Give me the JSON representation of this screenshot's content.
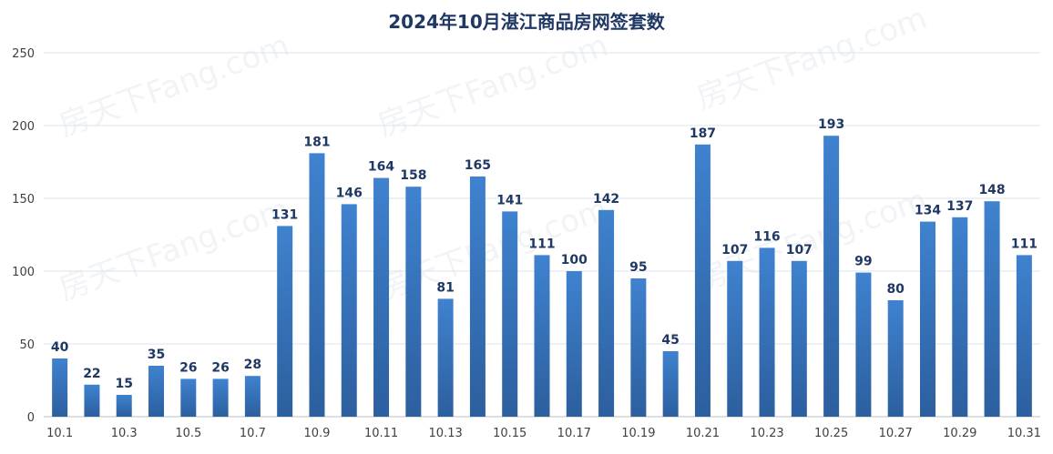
{
  "chart_data": {
    "type": "bar",
    "title": "2024年10月湛江商品房网签套数",
    "xlabel": "",
    "ylabel": "",
    "ylim": [
      0,
      250
    ],
    "yticks": [
      0,
      50,
      100,
      150,
      200,
      250
    ],
    "grid": true,
    "legend": "none",
    "bar_color": "#3a78c3",
    "categories": [
      "10.1",
      "10.2",
      "10.3",
      "10.4",
      "10.5",
      "10.6",
      "10.7",
      "10.8",
      "10.9",
      "10.10",
      "10.11",
      "10.12",
      "10.13",
      "10.14",
      "10.15",
      "10.16",
      "10.17",
      "10.18",
      "10.19",
      "10.20",
      "10.21",
      "10.22",
      "10.23",
      "10.24",
      "10.25",
      "10.26",
      "10.27",
      "10.28",
      "10.29",
      "10.30",
      "10.31"
    ],
    "visible_x_labels": [
      "10.1",
      "10.3",
      "10.5",
      "10.7",
      "10.9",
      "10.11",
      "10.13",
      "10.15",
      "10.17",
      "10.19",
      "10.21",
      "10.23",
      "10.25",
      "10.27",
      "10.29",
      "10.31"
    ],
    "values": [
      40,
      22,
      15,
      35,
      26,
      26,
      28,
      131,
      181,
      146,
      164,
      158,
      81,
      165,
      141,
      111,
      100,
      142,
      95,
      45,
      187,
      107,
      116,
      107,
      193,
      99,
      80,
      134,
      137,
      148,
      111
    ]
  },
  "watermark": "房天下Fang.com"
}
